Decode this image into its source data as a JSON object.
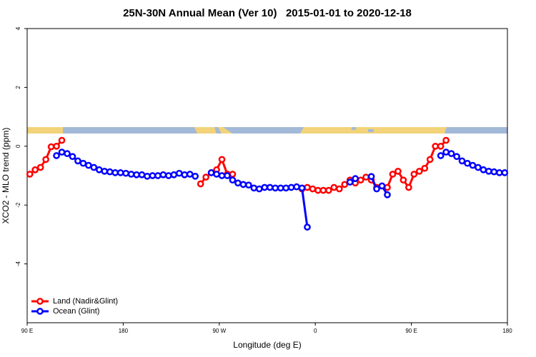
{
  "chart_data": {
    "type": "line",
    "title": "25N-30N Annual Mean (Ver 10)   2015-01-01 to 2020-12-18",
    "x_label": "Longitude (deg E)",
    "y_label": "XCO2 - MLO trend (ppm)",
    "xlim": [
      90,
      540
    ],
    "ylim": [
      -6,
      4
    ],
    "xticks": [
      {
        "value": 90,
        "label": "90 E"
      },
      180,
      {
        "value": 270,
        "label": "90 W"
      },
      {
        "value": 360,
        "label": "0"
      },
      {
        "value": 450,
        "label": "90 E"
      },
      {
        "value": 540,
        "label": "180"
      }
    ],
    "yticks": [
      4,
      2,
      0,
      -2,
      -4
    ],
    "legend": "bottom-left",
    "x": [
      92.5,
      97.5,
      102.5,
      107.5,
      112.5,
      117.5,
      122.5,
      127.5,
      132.5,
      137.5,
      142.5,
      147.5,
      152.5,
      157.5,
      162.5,
      167.5,
      172.5,
      177.5,
      182.5,
      187.5,
      192.5,
      197.5,
      202.5,
      207.5,
      212.5,
      217.5,
      222.5,
      227.5,
      232.5,
      237.5,
      242.5,
      247.5,
      252.5,
      257.5,
      262.5,
      267.5,
      272.5,
      277.5,
      282.5,
      287.5,
      292.5,
      297.5,
      302.5,
      307.5,
      312.5,
      317.5,
      322.5,
      327.5,
      332.5,
      337.5,
      342.5,
      347.5,
      352.5,
      357.5,
      362.5,
      367.5,
      372.5,
      377.5,
      382.5,
      387.5,
      392.5,
      397.5,
      402.5,
      407.5,
      412.5,
      417.5,
      422.5,
      427.5,
      432.5,
      437.5,
      442.5,
      447.5,
      452.5,
      457.5,
      462.5,
      467.5,
      472.5,
      477.5,
      482.5,
      487.5,
      492.5,
      497.5,
      502.5,
      507.5,
      512.5,
      517.5,
      522.5,
      527.5,
      532.5,
      537.5
    ],
    "series": [
      {
        "name": "Land (Nadir&Glint)",
        "color": "#ff0000",
        "values": [
          -0.95,
          -0.8,
          -0.72,
          -0.45,
          -0.02,
          0,
          0.2,
          null,
          null,
          null,
          null,
          null,
          null,
          null,
          null,
          null,
          null,
          null,
          null,
          null,
          null,
          null,
          null,
          null,
          null,
          null,
          null,
          null,
          null,
          null,
          null,
          null,
          -1.28,
          -1.05,
          -0.9,
          -0.8,
          -0.45,
          -0.95,
          -0.95,
          null,
          null,
          null,
          null,
          null,
          null,
          null,
          null,
          null,
          null,
          null,
          null,
          -1.45,
          -1.4,
          -1.45,
          -1.5,
          -1.5,
          -1.5,
          -1.4,
          -1.45,
          -1.3,
          -1.15,
          -1.25,
          -1.15,
          -1.05,
          -1.15,
          -1.4,
          -1.35,
          -1.4,
          -0.95,
          -0.85,
          -1.15,
          -1.4,
          -0.95,
          -0.85,
          -0.75,
          -0.45,
          0,
          0,
          0.2,
          null,
          null,
          null,
          null,
          null,
          null,
          null,
          null,
          null,
          null,
          null
        ]
      },
      {
        "name": "Ocean (Glint)",
        "color": "#0000ff",
        "values": [
          null,
          null,
          null,
          null,
          null,
          -0.32,
          -0.2,
          -0.25,
          -0.35,
          -0.5,
          -0.58,
          -0.65,
          -0.72,
          -0.8,
          -0.85,
          -0.87,
          -0.9,
          -0.9,
          -0.92,
          -0.95,
          -0.97,
          -0.97,
          -1.02,
          -1,
          -1,
          -0.97,
          -1,
          -0.97,
          -0.92,
          -0.97,
          -0.95,
          -1.02,
          null,
          null,
          -0.9,
          -0.95,
          -1,
          -1,
          -1.15,
          -1.25,
          -1.3,
          -1.32,
          -1.42,
          -1.45,
          -1.4,
          -1.4,
          -1.42,
          -1.42,
          -1.42,
          -1.4,
          -1.38,
          -1.42,
          -2.75,
          null,
          null,
          null,
          null,
          null,
          null,
          null,
          -1.22,
          -1.1,
          null,
          null,
          -1.03,
          -1.45,
          -1.35,
          -1.65,
          null,
          null,
          null,
          null,
          null,
          null,
          null,
          null,
          null,
          -0.32,
          -0.2,
          -0.25,
          -0.35,
          -0.5,
          -0.58,
          -0.65,
          -0.72,
          -0.8,
          -0.85,
          -0.87,
          -0.9,
          -0.9
        ]
      }
    ]
  }
}
